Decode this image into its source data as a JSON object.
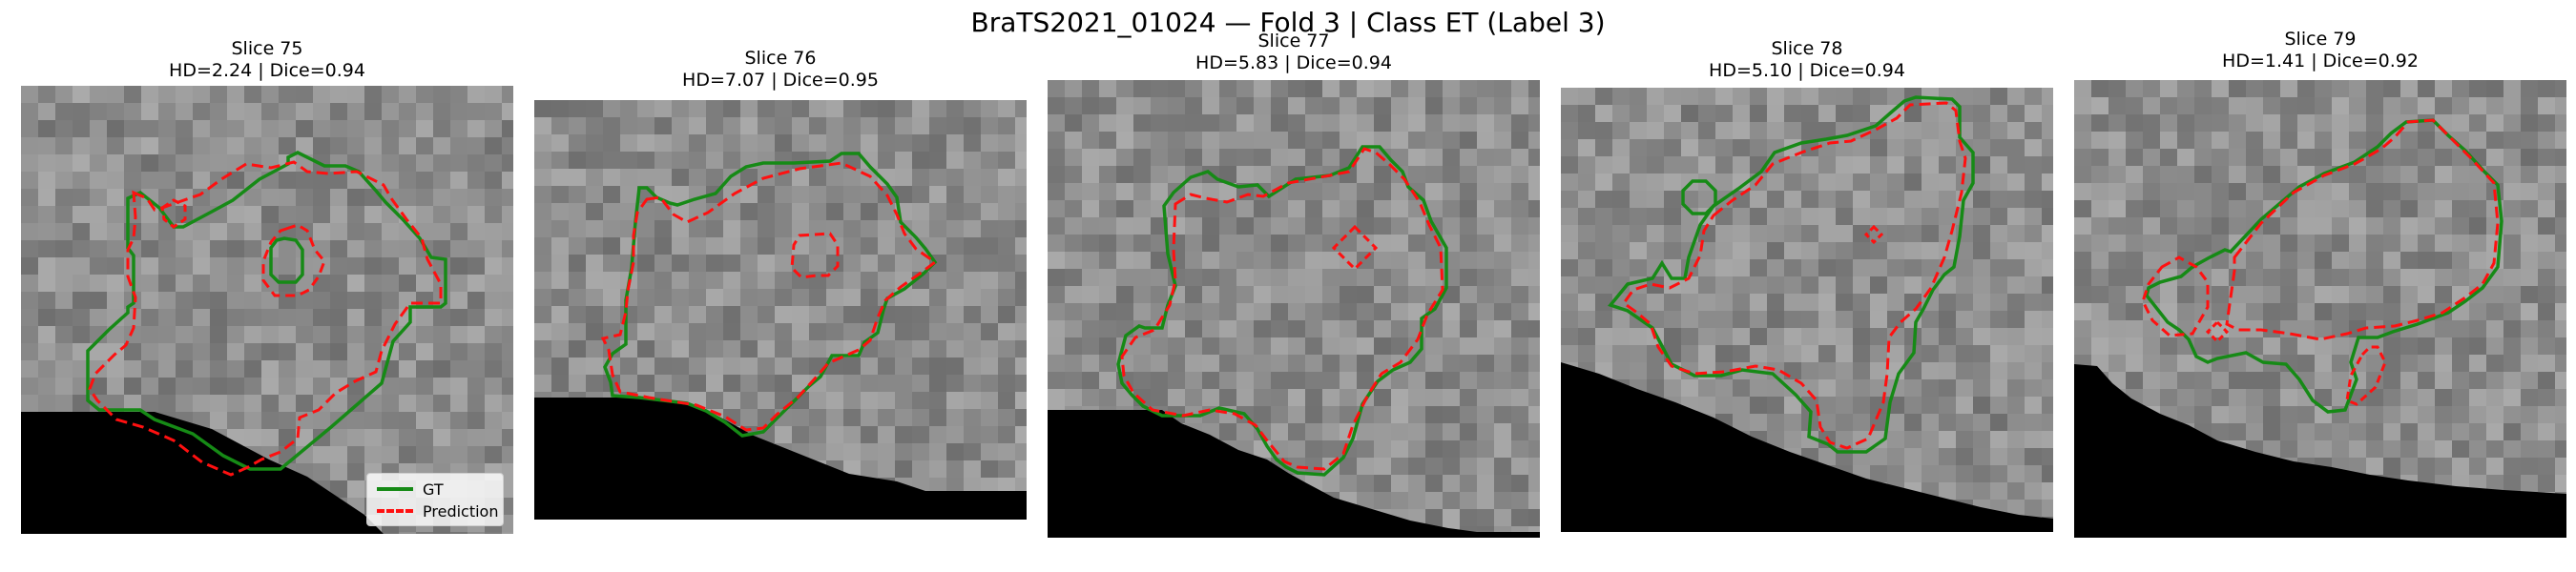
{
  "figure": {
    "title": "BraTS2021_01024 — Fold 3 | Class ET (Label 3)"
  },
  "panels": [
    {
      "slice_label": "Slice 75",
      "metrics": "HD=2.24 | Dice=0.94"
    },
    {
      "slice_label": "Slice 76",
      "metrics": "HD=7.07 | Dice=0.95"
    },
    {
      "slice_label": "Slice 77",
      "metrics": "HD=5.83 | Dice=0.94"
    },
    {
      "slice_label": "Slice 78",
      "metrics": "HD=5.10 | Dice=0.94"
    },
    {
      "slice_label": "Slice 79",
      "metrics": "HD=1.41 | Dice=0.92"
    }
  ],
  "legend": {
    "gt_label": "GT",
    "prediction_label": "Prediction"
  },
  "colors": {
    "gt": "#168a16",
    "prediction": "#ff1010",
    "background_mask": "#000000"
  }
}
